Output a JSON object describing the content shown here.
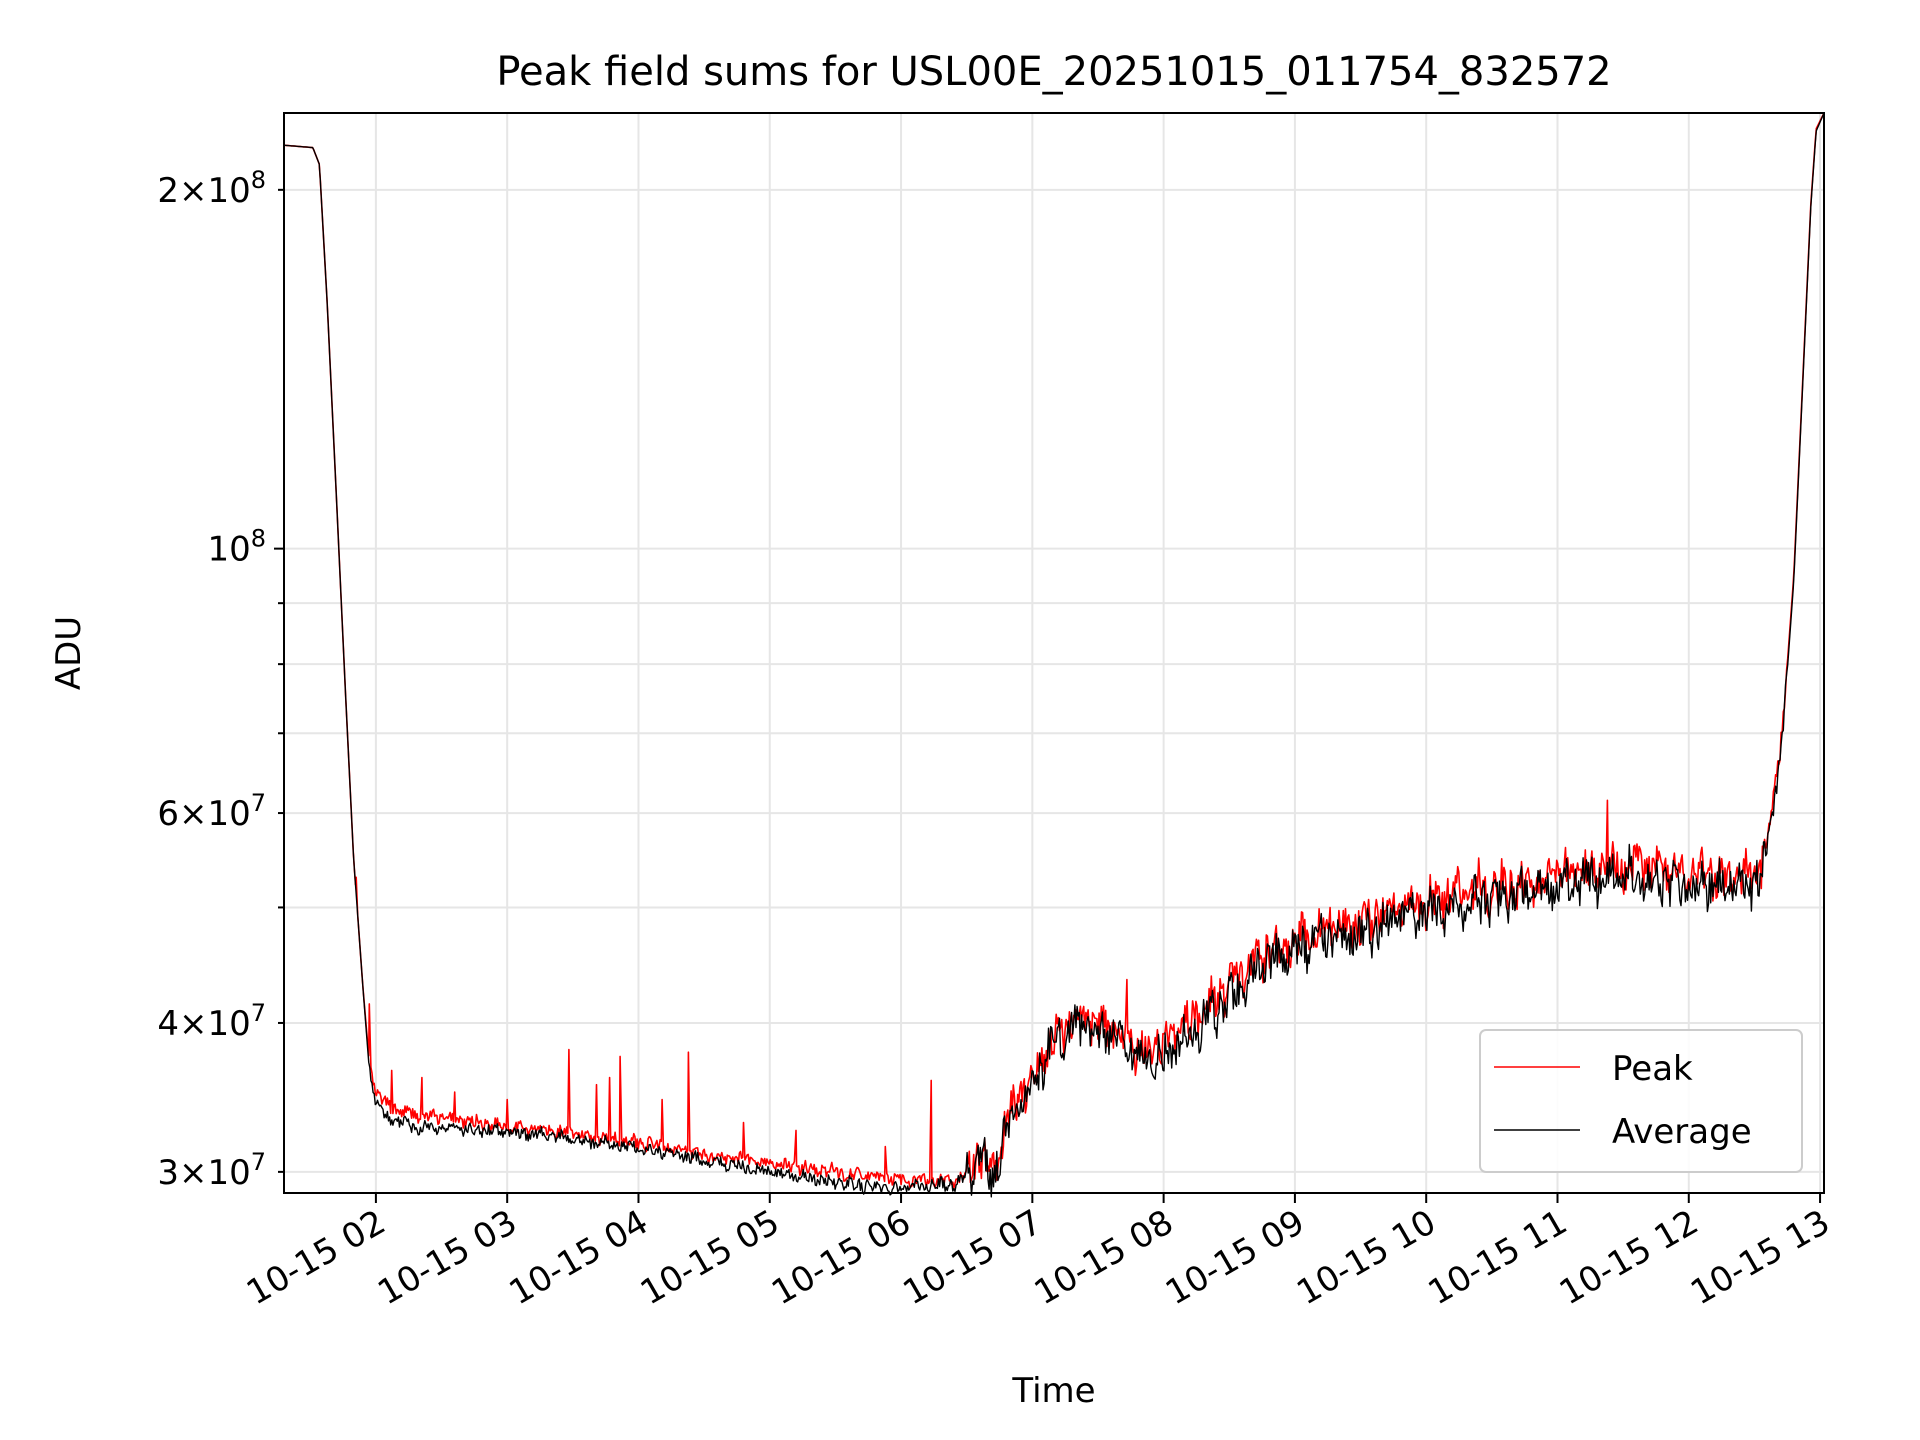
{
  "chart_data": {
    "type": "line",
    "title": "Peak field sums for USL00E_20251015_011754_832572",
    "xlabel": "Time",
    "ylabel": "ADU",
    "yscale": "log",
    "x_unit": "hours",
    "xlim": [
      1.3,
      13.03
    ],
    "ylim": [
      28800000,
      232000000
    ],
    "x_ticks": [
      {
        "value": 2,
        "label": "10-15 02"
      },
      {
        "value": 3,
        "label": "10-15 03"
      },
      {
        "value": 4,
        "label": "10-15 04"
      },
      {
        "value": 5,
        "label": "10-15 05"
      },
      {
        "value": 6,
        "label": "10-15 06"
      },
      {
        "value": 7,
        "label": "10-15 07"
      },
      {
        "value": 8,
        "label": "10-15 08"
      },
      {
        "value": 9,
        "label": "10-15 09"
      },
      {
        "value": 10,
        "label": "10-15 10"
      },
      {
        "value": 11,
        "label": "10-15 11"
      },
      {
        "value": 12,
        "label": "10-15 12"
      },
      {
        "value": 13,
        "label": "10-15 13"
      }
    ],
    "y_major_ticks": [
      {
        "value": 100000000,
        "base": "10",
        "exp": "8"
      }
    ],
    "y_labeled_minor_ticks": [
      {
        "value": 30000000,
        "mant": "3",
        "base": "10",
        "exp": "7"
      },
      {
        "value": 40000000,
        "mant": "4",
        "base": "10",
        "exp": "7"
      },
      {
        "value": 60000000,
        "mant": "6",
        "base": "10",
        "exp": "7"
      },
      {
        "value": 200000000,
        "mant": "2",
        "base": "10",
        "exp": "8"
      }
    ],
    "y_minor_ticks": [
      50000000,
      70000000,
      80000000,
      90000000
    ],
    "grid": true,
    "legend_position": "lower-right",
    "series": [
      {
        "name": "Peak",
        "color": "#ff0000",
        "keypoints": [
          [
            1.3,
            218000000
          ],
          [
            1.52,
            217000000
          ],
          [
            1.57,
            210000000
          ],
          [
            1.63,
            160000000
          ],
          [
            1.7,
            110000000
          ],
          [
            1.77,
            75000000
          ],
          [
            1.83,
            55000000
          ],
          [
            1.9,
            43000000
          ],
          [
            1.95,
            37000000
          ],
          [
            2.0,
            35000000
          ],
          [
            2.1,
            34000000
          ],
          [
            2.3,
            33500000
          ],
          [
            2.6,
            33200000
          ],
          [
            3.0,
            32800000
          ],
          [
            3.5,
            32300000
          ],
          [
            4.0,
            31800000
          ],
          [
            4.5,
            31000000
          ],
          [
            5.0,
            30500000
          ],
          [
            5.5,
            30000000
          ],
          [
            5.9,
            29600000
          ],
          [
            6.4,
            29400000
          ],
          [
            6.45,
            29600000
          ],
          [
            6.6,
            31000000
          ],
          [
            6.7,
            30000000
          ],
          [
            6.85,
            34000000
          ],
          [
            7.0,
            36000000
          ],
          [
            7.2,
            39500000
          ],
          [
            7.35,
            40500000
          ],
          [
            7.6,
            39500000
          ],
          [
            7.8,
            38000000
          ],
          [
            8.0,
            38500000
          ],
          [
            8.2,
            40000000
          ],
          [
            8.4,
            42000000
          ],
          [
            8.6,
            44000000
          ],
          [
            8.8,
            46000000
          ],
          [
            9.0,
            47000000
          ],
          [
            9.2,
            48000000
          ],
          [
            9.5,
            48500000
          ],
          [
            9.8,
            50000000
          ],
          [
            10.0,
            50500000
          ],
          [
            10.3,
            51500000
          ],
          [
            10.6,
            52000000
          ],
          [
            11.0,
            53000000
          ],
          [
            11.3,
            54000000
          ],
          [
            11.6,
            54500000
          ],
          [
            11.9,
            53000000
          ],
          [
            12.1,
            53000000
          ],
          [
            12.4,
            53000000
          ],
          [
            12.55,
            54000000
          ],
          [
            12.65,
            62000000
          ],
          [
            12.72,
            72000000
          ],
          [
            12.8,
            95000000
          ],
          [
            12.87,
            140000000
          ],
          [
            12.93,
            195000000
          ],
          [
            12.97,
            225000000
          ],
          [
            13.03,
            232000000
          ]
        ],
        "spikes": [
          [
            1.85,
            53000000
          ],
          [
            1.95,
            41500000
          ],
          [
            2.12,
            36500000
          ],
          [
            2.35,
            36000000
          ],
          [
            2.6,
            35000000
          ],
          [
            3.0,
            34500000
          ],
          [
            3.47,
            38000000
          ],
          [
            3.68,
            35500000
          ],
          [
            3.78,
            36000000
          ],
          [
            3.86,
            37500000
          ],
          [
            4.18,
            34500000
          ],
          [
            4.38,
            37800000
          ],
          [
            4.8,
            33000000
          ],
          [
            5.2,
            32500000
          ],
          [
            5.88,
            31500000
          ],
          [
            6.23,
            35800000
          ],
          [
            7.72,
            43500000
          ],
          [
            10.4,
            55000000
          ],
          [
            11.38,
            61500000
          ]
        ]
      },
      {
        "name": "Average",
        "color": "#000000",
        "keypoints": [
          [
            1.3,
            218000000
          ],
          [
            1.52,
            217000000
          ],
          [
            1.57,
            210000000
          ],
          [
            1.63,
            160000000
          ],
          [
            1.7,
            110000000
          ],
          [
            1.77,
            75000000
          ],
          [
            1.83,
            55000000
          ],
          [
            1.9,
            43000000
          ],
          [
            1.95,
            36500000
          ],
          [
            2.0,
            34200000
          ],
          [
            2.1,
            33300000
          ],
          [
            2.3,
            32700000
          ],
          [
            2.6,
            32600000
          ],
          [
            3.0,
            32400000
          ],
          [
            3.5,
            32000000
          ],
          [
            4.0,
            31400000
          ],
          [
            4.5,
            30700000
          ],
          [
            5.0,
            30000000
          ],
          [
            5.5,
            29400000
          ],
          [
            5.9,
            29100000
          ],
          [
            6.4,
            29300000
          ],
          [
            6.45,
            29500000
          ],
          [
            6.6,
            30800000
          ],
          [
            6.7,
            29800000
          ],
          [
            6.85,
            33500000
          ],
          [
            7.0,
            35500000
          ],
          [
            7.2,
            39000000
          ],
          [
            7.35,
            40000000
          ],
          [
            7.6,
            39000000
          ],
          [
            7.8,
            37000000
          ],
          [
            8.0,
            37500000
          ],
          [
            8.2,
            39000000
          ],
          [
            8.4,
            41000000
          ],
          [
            8.6,
            43000000
          ],
          [
            8.8,
            45000000
          ],
          [
            9.0,
            46000000
          ],
          [
            9.2,
            47000000
          ],
          [
            9.5,
            47500000
          ],
          [
            9.8,
            49000000
          ],
          [
            10.0,
            49500000
          ],
          [
            10.3,
            50500000
          ],
          [
            10.6,
            51000000
          ],
          [
            11.0,
            52000000
          ],
          [
            11.3,
            53000000
          ],
          [
            11.6,
            53500000
          ],
          [
            11.9,
            52000000
          ],
          [
            12.1,
            52000000
          ],
          [
            12.4,
            52000000
          ],
          [
            12.55,
            53000000
          ],
          [
            12.65,
            61000000
          ],
          [
            12.72,
            71000000
          ],
          [
            12.8,
            94000000
          ],
          [
            12.87,
            139000000
          ],
          [
            12.93,
            194000000
          ],
          [
            12.97,
            224000000
          ],
          [
            13.03,
            232000000
          ]
        ],
        "spikes": []
      }
    ]
  }
}
